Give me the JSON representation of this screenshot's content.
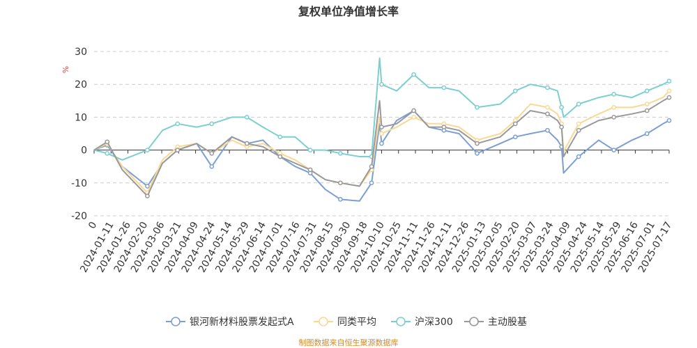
{
  "chart_data": {
    "type": "line",
    "title": "复权单位净值增长率",
    "ylabel": "%",
    "ylim": [
      -20,
      30
    ],
    "yticks": [
      -20,
      -10,
      0,
      10,
      20,
      30
    ],
    "grid": true,
    "legend_position": "bottom",
    "x_tick_labels": [
      "0",
      "2024-01-11",
      "2024-01-26",
      "2024-02-20",
      "2024-03-06",
      "2024-03-21",
      "2024-04-09",
      "2024-04-24",
      "2024-05-14",
      "2024-05-29",
      "2024-06-14",
      "2024-07-01",
      "2024-07-16",
      "2024-07-31",
      "2024-08-15",
      "2024-08-30",
      "2024-09-18",
      "2024-10-10",
      "2024-10-25",
      "2024-11-11",
      "2024-11-26",
      "2024-12-11",
      "2024-12-26",
      "2025-01-13",
      "2025-02-05",
      "2025-02-20",
      "2025-03-07",
      "2025-03-24",
      "2025-04-09",
      "2025-04-24",
      "2025-05-14",
      "2025-05-29",
      "2025-06-16",
      "2025-07-01",
      "2025-07-17"
    ],
    "x": [
      "2023-12-29",
      "2024-01-11",
      "2024-01-26",
      "2024-02-20",
      "2024-03-06",
      "2024-03-21",
      "2024-04-09",
      "2024-04-24",
      "2024-05-14",
      "2024-05-29",
      "2024-06-14",
      "2024-07-01",
      "2024-07-16",
      "2024-07-31",
      "2024-08-15",
      "2024-08-30",
      "2024-09-18",
      "2024-09-30",
      "2024-10-08",
      "2024-10-10",
      "2024-10-25",
      "2024-11-11",
      "2024-11-26",
      "2024-12-11",
      "2024-12-26",
      "2025-01-13",
      "2025-02-05",
      "2025-02-20",
      "2025-03-07",
      "2025-03-24",
      "2025-04-03",
      "2025-04-07",
      "2025-04-09",
      "2025-04-24",
      "2025-05-14",
      "2025-05-29",
      "2025-06-16",
      "2025-07-01",
      "2025-07-17",
      "2025-07-23"
    ],
    "series": [
      {
        "name": "银河新材料股票发起式A",
        "color": "#7b9fd4",
        "values": [
          0,
          1.5,
          -5,
          -11,
          -4,
          0,
          2,
          -5,
          4,
          2,
          3,
          -2,
          -5,
          -7,
          -12,
          -15,
          -15.5,
          -10,
          8,
          2,
          9,
          12,
          7,
          6,
          5,
          -1,
          2,
          4,
          5,
          6,
          3,
          1,
          -7,
          -2,
          3,
          0,
          3,
          5,
          8,
          9
        ]
      },
      {
        "name": "同类平均",
        "color": "#fad894",
        "values": [
          0,
          2,
          -5,
          -13,
          -3,
          1,
          2,
          -1,
          3,
          1,
          2,
          -1,
          -3,
          -6,
          -9,
          -10,
          -11,
          -6,
          10,
          5,
          7,
          10,
          8,
          8,
          7,
          3,
          5,
          9,
          14,
          13,
          11,
          8,
          -0.5,
          8,
          11,
          13,
          13,
          14,
          16,
          18
        ]
      },
      {
        "name": "沪深300",
        "color": "#7ccfcf",
        "values": [
          0,
          -1,
          -3,
          0,
          6,
          8,
          7,
          8,
          10,
          10,
          7,
          4,
          4,
          0,
          0,
          -1,
          -2,
          -2,
          28,
          20,
          18,
          23,
          19,
          19,
          18,
          13,
          14,
          18,
          20,
          19,
          18,
          13,
          10,
          14,
          16,
          17,
          16,
          18,
          20,
          21
        ]
      },
      {
        "name": "主动股基",
        "color": "#999999",
        "values": [
          0,
          2.5,
          -6,
          -14,
          -4,
          0,
          2,
          -1,
          4,
          2,
          1,
          -2,
          -4,
          -6,
          -9,
          -10,
          -11,
          -5,
          15,
          7,
          8,
          12,
          7,
          7,
          6,
          2,
          4,
          8,
          12,
          11,
          9,
          7,
          -2,
          6,
          9,
          10,
          11,
          12,
          15,
          16
        ]
      }
    ]
  },
  "source_text": "制图数据来自恒生聚源数据库"
}
